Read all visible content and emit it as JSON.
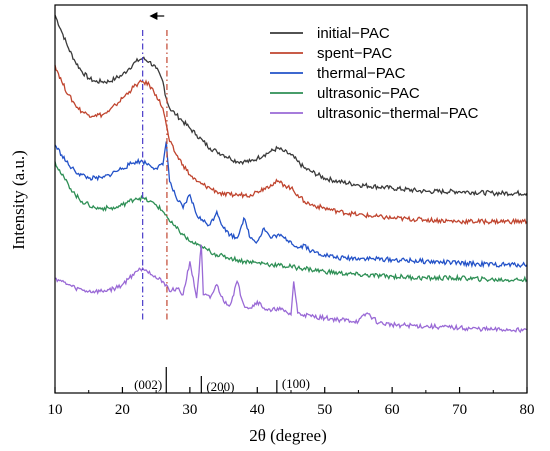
{
  "chart_data": {
    "type": "line",
    "title": "",
    "xlabel": "2θ (degree)",
    "ylabel": "Intensity (a.u.)",
    "xlim": [
      10,
      80
    ],
    "x_ticks": [
      "10",
      "20",
      "30",
      "40",
      "50",
      "60",
      "70",
      "80"
    ],
    "y_ticks_labeled": false,
    "grid": false,
    "legend_position": "top-right",
    "series": [
      {
        "name": "initial−PAC",
        "color": "#3a3a3a",
        "x": [
          10,
          11,
          12,
          13,
          14,
          15,
          16,
          17,
          18,
          19,
          20,
          21,
          22,
          23,
          24,
          25,
          26,
          26.5,
          27,
          28,
          29,
          30,
          31,
          32,
          33,
          34,
          35,
          36,
          37,
          38,
          39,
          40,
          41,
          42,
          43,
          44,
          45,
          46,
          47,
          48,
          50,
          52,
          55,
          60,
          65,
          70,
          75,
          80
        ],
        "y": [
          100,
          95,
          90,
          86,
          83,
          81,
          80,
          80,
          80,
          81,
          82,
          84,
          86,
          87,
          86,
          84,
          80,
          75,
          72,
          70,
          68,
          66,
          64,
          62,
          60,
          59,
          58,
          57,
          56,
          56,
          56,
          57,
          58,
          59,
          60,
          59,
          58,
          56,
          54,
          53,
          51,
          50,
          49,
          48,
          47,
          47,
          46.5,
          46.5
        ]
      },
      {
        "name": "spent−PAC",
        "color": "#c0452f",
        "x": [
          10,
          11,
          12,
          13,
          14,
          15,
          16,
          17,
          18,
          19,
          20,
          21,
          22,
          23,
          24,
          25,
          26,
          26.5,
          27,
          28,
          29,
          30,
          31,
          32,
          33,
          34,
          35,
          36,
          37,
          38,
          39,
          40,
          41,
          42,
          43,
          44,
          45,
          46,
          47,
          48,
          50,
          52,
          55,
          60,
          65,
          70,
          75,
          80
        ],
        "y": [
          85,
          80,
          76,
          73,
          71,
          70,
          70,
          70,
          71,
          73,
          75,
          77,
          79,
          80,
          79,
          76,
          72,
          67,
          62,
          58,
          55,
          52,
          50,
          49,
          48,
          47,
          46,
          46,
          46,
          46,
          46,
          47,
          48,
          49,
          50,
          49,
          48,
          46,
          44,
          43,
          42,
          41,
          40,
          39,
          38.5,
          38,
          38,
          38
        ]
      },
      {
        "name": "thermal−PAC",
        "color": "#2352c8",
        "x": [
          10,
          11,
          12,
          13,
          14,
          15,
          16,
          17,
          18,
          19,
          20,
          21,
          22,
          23,
          24,
          25,
          26,
          26.5,
          27,
          28,
          29,
          30,
          31,
          32,
          33,
          34,
          35,
          36,
          37,
          38,
          39,
          40,
          41,
          42,
          43,
          44,
          45,
          46,
          47,
          48,
          50,
          52,
          55,
          60,
          65,
          70,
          75,
          80
        ],
        "y": [
          61,
          58,
          55,
          53,
          52,
          51,
          51,
          51,
          52,
          53,
          54,
          55,
          56,
          56,
          55,
          54,
          55,
          62,
          50,
          45,
          42,
          46,
          40,
          38,
          37,
          41,
          36,
          34,
          33,
          39,
          33,
          32,
          36,
          33,
          34,
          33,
          32,
          30,
          31,
          29,
          28,
          27,
          27,
          26.5,
          26,
          25.5,
          25,
          25
        ]
      },
      {
        "name": "ultrasonic−PAC",
        "color": "#2e8f55",
        "x": [
          10,
          11,
          12,
          13,
          14,
          15,
          16,
          17,
          18,
          19,
          20,
          21,
          22,
          23,
          24,
          25,
          26,
          26.5,
          27,
          28,
          29,
          30,
          31,
          32,
          33,
          34,
          35,
          36,
          37,
          38,
          39,
          40,
          41,
          42,
          43,
          44,
          45,
          46,
          47,
          48,
          50,
          52,
          55,
          60,
          65,
          70,
          75,
          80
        ],
        "y": [
          56,
          52,
          49,
          46,
          44,
          43,
          42,
          42,
          42,
          42,
          43,
          44,
          45,
          45,
          44,
          43,
          41,
          40,
          38,
          36,
          34,
          32,
          31,
          30,
          29,
          28,
          27.5,
          27,
          26.5,
          26,
          26,
          25.5,
          25.5,
          25,
          25,
          24.5,
          24.5,
          24,
          24,
          23.5,
          23,
          22.5,
          22,
          21.5,
          21,
          21,
          20.5,
          20.5
        ]
      },
      {
        "name": "ultrasonic−thermal−PAC",
        "color": "#9a6ad6",
        "x": [
          10,
          11,
          12,
          13,
          14,
          15,
          16,
          17,
          18,
          19,
          20,
          21,
          22,
          23,
          24,
          25,
          26,
          26.5,
          27,
          28,
          29,
          30,
          31,
          31.7,
          32,
          33,
          34,
          35,
          36,
          37,
          38,
          39,
          40,
          41,
          42,
          43,
          44,
          45,
          45.4,
          46,
          47,
          48,
          50,
          52,
          55,
          56.3,
          58,
          60,
          65,
          70,
          75,
          80
        ],
        "y": [
          21,
          20,
          19,
          18,
          17.5,
          17,
          17,
          17,
          17.5,
          18,
          19,
          21,
          23,
          24,
          23,
          21,
          20,
          19,
          17,
          18,
          16,
          26,
          15,
          31,
          16,
          15,
          19,
          14,
          13,
          20,
          13,
          12,
          14,
          12,
          11,
          12,
          11,
          10,
          20,
          10.5,
          10,
          9.5,
          9,
          8.5,
          8,
          10.5,
          7.5,
          7,
          6.5,
          6,
          5.5,
          5.5
        ]
      }
    ],
    "reference_lines": [
      {
        "x": 23,
        "style": "dash-dot",
        "color": "#4a3cc9"
      },
      {
        "x": 26.6,
        "style": "dash-dot",
        "color": "#c0452f"
      }
    ],
    "shift_arrow": {
      "from_x": 26.2,
      "to_x": 24.0,
      "direction": "left"
    },
    "peak_markers": [
      {
        "label": "(002)",
        "x": 26.5,
        "height": 26
      },
      {
        "label": "(200)",
        "x": 31.7,
        "height": 17
      },
      {
        "label": "(100)",
        "x": 42.9,
        "height": 13
      }
    ]
  }
}
